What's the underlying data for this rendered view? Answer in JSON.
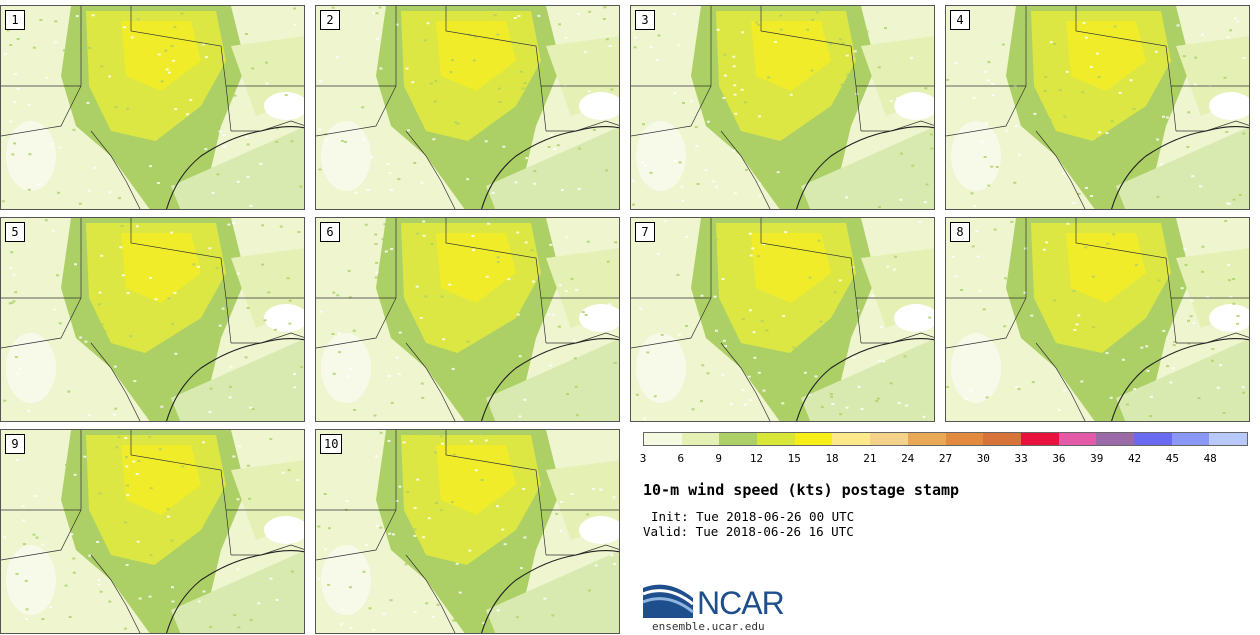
{
  "members": [
    "1",
    "2",
    "3",
    "4",
    "5",
    "6",
    "7",
    "8",
    "9",
    "10"
  ],
  "colorbar": {
    "colors": [
      "#f4f9e2",
      "#e4f0b4",
      "#acd066",
      "#d8e63a",
      "#f7ee17",
      "#fbe98c",
      "#f5d28a",
      "#e8a856",
      "#e28a3e",
      "#d8743a",
      "#e8123c",
      "#e25aa8",
      "#9a6aa8",
      "#6a6af0",
      "#8898f4",
      "#b8c8f8"
    ],
    "ticks": [
      "3",
      "6",
      "9",
      "12",
      "15",
      "18",
      "21",
      "24",
      "27",
      "30",
      "33",
      "36",
      "39",
      "42",
      "45",
      "48"
    ]
  },
  "title": "10-m wind speed (kts) postage stamp",
  "init": "Init: Tue 2018-06-26 00 UTC",
  "valid": "Valid: Tue 2018-06-26 16 UTC",
  "logo": {
    "text": "NCAR",
    "site": "ensemble.ucar.edu"
  }
}
